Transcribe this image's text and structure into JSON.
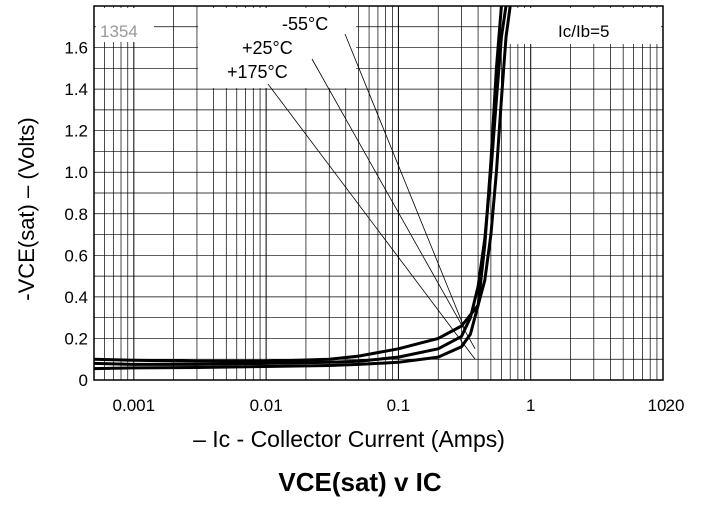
{
  "chart_data": {
    "type": "line",
    "figure_code": "1354",
    "condition_label": "Ic/Ib=5",
    "xlabel": "– Ic - Collector Current (Amps)",
    "ylabel": "-VCE(sat) – (Volts)",
    "title": "VCE(sat) v IC",
    "x_scale": "log",
    "xlim": [
      0.0005,
      10
    ],
    "ylim": [
      0,
      1.8
    ],
    "grid": true,
    "x_ticks": [
      {
        "value": 0.001,
        "label": "0.001"
      },
      {
        "value": 0.01,
        "label": "0.01"
      },
      {
        "value": 0.1,
        "label": "0.1"
      },
      {
        "value": 1,
        "label": "1"
      },
      {
        "value": 10,
        "label": "10"
      }
    ],
    "x_extra_label": "20",
    "y_ticks": [
      {
        "value": 0,
        "label": "0"
      },
      {
        "value": 0.2,
        "label": "0.2"
      },
      {
        "value": 0.4,
        "label": "0.4"
      },
      {
        "value": 0.6,
        "label": "0.6"
      },
      {
        "value": 0.8,
        "label": "0.8"
      },
      {
        "value": 1.0,
        "label": "1.0"
      },
      {
        "value": 1.2,
        "label": "1.2"
      },
      {
        "value": 1.4,
        "label": "1.4"
      },
      {
        "value": 1.6,
        "label": "1.6"
      }
    ],
    "series": [
      {
        "name": "-55°C",
        "label_anchor": [
          0.32,
          0.24
        ],
        "x": [
          0.0005,
          0.001,
          0.003,
          0.01,
          0.03,
          0.05,
          0.1,
          0.2,
          0.3,
          0.4,
          0.45,
          0.5,
          0.55,
          0.6,
          0.65,
          0.7
        ],
        "y": [
          0.1,
          0.095,
          0.09,
          0.09,
          0.1,
          0.115,
          0.15,
          0.2,
          0.26,
          0.36,
          0.48,
          0.7,
          1.0,
          1.35,
          1.65,
          1.8
        ]
      },
      {
        "name": "+25°C",
        "label_anchor": [
          0.38,
          0.15
        ],
        "x": [
          0.0005,
          0.001,
          0.003,
          0.01,
          0.03,
          0.05,
          0.1,
          0.2,
          0.3,
          0.35,
          0.4,
          0.45,
          0.5,
          0.55,
          0.6,
          0.65
        ],
        "y": [
          0.08,
          0.075,
          0.075,
          0.08,
          0.085,
          0.09,
          0.11,
          0.15,
          0.21,
          0.3,
          0.45,
          0.68,
          1.0,
          1.35,
          1.65,
          1.8
        ]
      },
      {
        "name": "+175°C",
        "label_anchor": [
          0.38,
          0.1
        ],
        "x": [
          0.0005,
          0.001,
          0.003,
          0.01,
          0.03,
          0.05,
          0.1,
          0.2,
          0.3,
          0.35,
          0.4,
          0.45,
          0.5,
          0.55,
          0.6
        ],
        "y": [
          0.055,
          0.058,
          0.06,
          0.065,
          0.07,
          0.075,
          0.085,
          0.11,
          0.16,
          0.22,
          0.36,
          0.65,
          1.05,
          1.5,
          1.8
        ]
      }
    ]
  }
}
